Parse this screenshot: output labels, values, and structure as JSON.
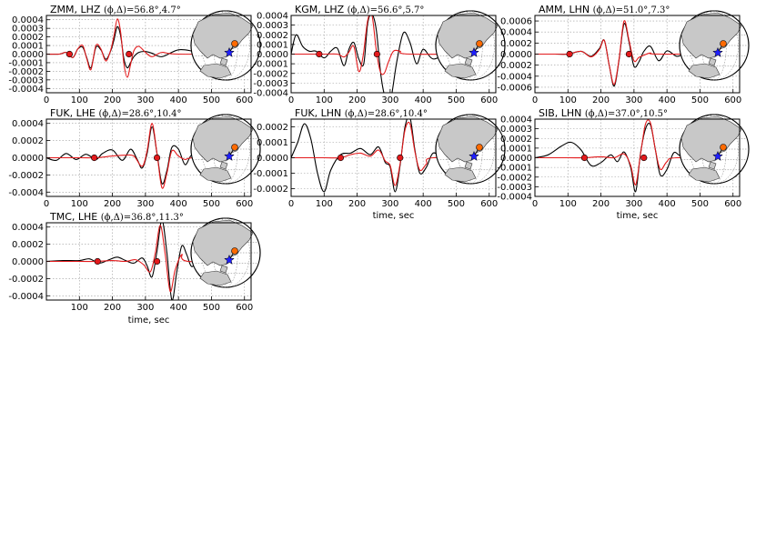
{
  "figure": {
    "time_axis_label": "time, sec",
    "colors": {
      "observed": "#000000",
      "synthetic": "#e31a1c",
      "marker": "#e31a1c",
      "event_star": "#1f1fff",
      "station": "#ff6a00",
      "land": "#c8c8c8"
    }
  },
  "chart_data": [
    {
      "type": "line",
      "station": "ZMM, LHZ",
      "params": "(ϕ,Δ)=56.8°,4.7°",
      "xlabel": "",
      "xlim": [
        0,
        620
      ],
      "ylim": [
        -0.00045,
        0.00045
      ],
      "xticks": [
        0,
        100,
        200,
        300,
        400,
        500,
        600
      ],
      "yticks": [
        "0.0004",
        "0.0003",
        "0.0002",
        "0.0001",
        "0.0000",
        "-0.0001",
        "-0.0002",
        "-0.0003",
        "-0.0004"
      ],
      "ytick_values": [
        0.0004,
        0.0003,
        0.0002,
        0.0001,
        0,
        -0.0001,
        -0.0002,
        -0.0003,
        -0.0004
      ],
      "window_markers": [
        70,
        250
      ],
      "series": [
        {
          "x": [
            0,
            40,
            60,
            80,
            95,
            110,
            122,
            135,
            150,
            165,
            180,
            195,
            205,
            215,
            225,
            235,
            245,
            255,
            265,
            280,
            300,
            320,
            350,
            400,
            450,
            500,
            620
          ],
          "y": [
            0,
            0,
            2e-05,
            -4e-05,
            6e-05,
            8e-05,
            -4e-05,
            -0.00016,
            8e-05,
            5e-05,
            -6e-05,
            4e-05,
            0.00017,
            0.00032,
            0.00021,
            -6e-05,
            -0.00016,
            -0.0001,
            -3e-05,
            2e-05,
            3e-05,
            1e-05,
            -3e-05,
            5e-05,
            3e-05,
            0,
            0
          ]
        },
        {
          "x": [
            0,
            40,
            60,
            80,
            95,
            110,
            122,
            135,
            150,
            165,
            180,
            195,
            205,
            215,
            225,
            235,
            245,
            255,
            265,
            280,
            300,
            320,
            350,
            400,
            620
          ],
          "y": [
            0,
            0,
            2e-05,
            -4e-05,
            6e-05,
            0.0001,
            -5e-05,
            -0.00018,
            0.0001,
            6e-05,
            -8e-05,
            5e-05,
            0.00022,
            0.00041,
            0.00025,
            -0.00012,
            -0.00027,
            -0.00012,
            4e-05,
            9e-05,
            2e-05,
            -3e-05,
            2e-05,
            0,
            0
          ]
        }
      ]
    },
    {
      "type": "line",
      "station": "KGM, LHZ",
      "params": "(ϕ,Δ)=56.6°,5.7°",
      "xlabel": "",
      "xlim": [
        0,
        620
      ],
      "ylim": [
        -0.0004,
        0.0004
      ],
      "xticks": [
        0,
        100,
        200,
        300,
        400,
        500,
        600
      ],
      "yticks": [
        "0.0004",
        "0.0003",
        "0.0002",
        "0.0001",
        "0.0000",
        "-0.0001",
        "-0.0002",
        "-0.0003",
        "-0.0004"
      ],
      "ytick_values": [
        0.0004,
        0.0003,
        0.0002,
        0.0001,
        0,
        -0.0001,
        -0.0002,
        -0.0003,
        -0.0004
      ],
      "window_markers": [
        85,
        260
      ],
      "series": [
        {
          "x": [
            0,
            15,
            35,
            55,
            75,
            100,
            120,
            140,
            160,
            175,
            190,
            205,
            220,
            232,
            245,
            258,
            272,
            285,
            300,
            320,
            340,
            360,
            380,
            400,
            430,
            480,
            620
          ],
          "y": [
            0,
            0.0002,
            8e-05,
            3e-05,
            3e-05,
            -4e-05,
            3e-05,
            6e-05,
            -0.00012,
            5e-05,
            0.00012,
            -5e-05,
            -0.0001,
            0.00032,
            0.00041,
            0.00025,
            -0.00022,
            -0.00045,
            -0.0005,
            -8e-05,
            0.00022,
            0.00012,
            -0.0001,
            5e-05,
            -5e-05,
            0,
            0
          ]
        },
        {
          "x": [
            0,
            50,
            100,
            140,
            160,
            175,
            190,
            205,
            218,
            232,
            245,
            258,
            270,
            282,
            295,
            310,
            330,
            360,
            620
          ],
          "y": [
            0,
            0,
            0,
            0,
            -3e-05,
            2e-05,
            8e-05,
            -0.00018,
            -2e-05,
            0.00035,
            0.0004,
            4e-05,
            -0.00018,
            -0.0002,
            -8e-05,
            3e-05,
            3e-05,
            0,
            0
          ]
        }
      ]
    },
    {
      "type": "line",
      "station": "AMM, LHN",
      "params": "(ϕ,Δ)=51.0°,7.3°",
      "xlabel": "",
      "xlim": [
        0,
        620
      ],
      "ylim": [
        -0.0007,
        0.0007
      ],
      "xticks": [
        0,
        100,
        200,
        300,
        400,
        500,
        600
      ],
      "yticks": [
        "0.0006",
        "0.0004",
        "0.0002",
        "0.0000",
        "-0.0002",
        "-0.0004",
        "-0.0006"
      ],
      "ytick_values": [
        0.0006,
        0.0004,
        0.0002,
        0,
        -0.0002,
        -0.0004,
        -0.0006
      ],
      "window_markers": [
        105,
        285
      ],
      "series": [
        {
          "x": [
            0,
            60,
            100,
            140,
            170,
            195,
            210,
            225,
            240,
            255,
            270,
            285,
            300,
            315,
            330,
            350,
            375,
            400,
            430,
            460,
            500,
            620
          ],
          "y": [
            0,
            0,
            0,
            5e-05,
            -4e-05,
            0.0001,
            0.00025,
            -0.0002,
            -0.00058,
            -0.0001,
            0.00055,
            0.00022,
            -0.00022,
            -0.00014,
            5e-05,
            0.00014,
            -0.00012,
            6e-05,
            -4e-05,
            2e-05,
            0,
            0
          ]
        },
        {
          "x": [
            0,
            60,
            100,
            140,
            170,
            195,
            210,
            225,
            240,
            255,
            270,
            285,
            300,
            315,
            330,
            350,
            375,
            620
          ],
          "y": [
            0,
            0,
            0,
            5e-05,
            -5e-05,
            8e-05,
            0.00025,
            -0.0002,
            -0.00055,
            -8e-05,
            0.0006,
            0.00025,
            -0.00012,
            -6e-05,
            -2e-05,
            2e-05,
            0,
            0
          ]
        }
      ]
    },
    {
      "type": "line",
      "station": "FUK, LHE",
      "params": "(ϕ,Δ)=28.6°,10.4°",
      "xlabel": "",
      "xlim": [
        0,
        620
      ],
      "ylim": [
        -0.00045,
        0.00045
      ],
      "xticks": [
        0,
        100,
        200,
        300,
        400,
        500,
        600
      ],
      "yticks": [
        "0.0004",
        "0.0002",
        "0.0000",
        "-0.0002",
        "-0.0004"
      ],
      "ytick_values": [
        0.0004,
        0.0002,
        0,
        -0.0002,
        -0.0004
      ],
      "window_markers": [
        145,
        335
      ],
      "series": [
        {
          "x": [
            0,
            30,
            60,
            90,
            120,
            150,
            170,
            200,
            230,
            255,
            275,
            290,
            305,
            320,
            335,
            350,
            365,
            380,
            400,
            420,
            440,
            470,
            620
          ],
          "y": [
            0,
            -3e-05,
            5e-05,
            -2e-05,
            4e-05,
            -2e-05,
            5e-05,
            9e-05,
            -3e-05,
            0.0001,
            -2e-05,
            -0.00012,
            5e-05,
            0.00036,
            5e-05,
            -0.0003,
            -0.00015,
            0.00012,
            0.0001,
            -8e-05,
            3e-05,
            0,
            0
          ]
        },
        {
          "x": [
            0,
            100,
            150,
            200,
            240,
            265,
            290,
            305,
            320,
            335,
            350,
            365,
            380,
            400,
            420,
            450,
            620
          ],
          "y": [
            0,
            0,
            0,
            2e-05,
            3e-05,
            2e-05,
            -0.0001,
            8e-05,
            0.0004,
            5e-05,
            -0.00035,
            -0.00018,
            8e-05,
            2e-05,
            -2e-05,
            0,
            0
          ]
        }
      ]
    },
    {
      "type": "line",
      "station": "FUK, LHN",
      "params": "(ϕ,Δ)=28.6°,10.4°",
      "xlabel": "time, sec",
      "xlim": [
        0,
        620
      ],
      "ylim": [
        -0.00025,
        0.00025
      ],
      "xticks": [
        0,
        100,
        200,
        300,
        400,
        500,
        600
      ],
      "yticks": [
        "0.0002",
        "0.0001",
        "0.0000",
        "-0.0001",
        "-0.0002"
      ],
      "ytick_values": [
        0.0002,
        0.0001,
        0,
        -0.0001,
        -0.0002
      ],
      "window_markers": [
        150,
        330
      ],
      "series": [
        {
          "x": [
            0,
            20,
            40,
            60,
            80,
            100,
            120,
            150,
            180,
            210,
            240,
            265,
            285,
            300,
            315,
            330,
            345,
            360,
            375,
            390,
            410,
            430,
            460,
            500,
            620
          ],
          "y": [
            0,
            0.0001,
            0.00022,
            0.00012,
            -0.0001,
            -0.00022,
            -8e-05,
            2e-05,
            3e-05,
            6e-05,
            2e-05,
            7e-05,
            -3e-05,
            -6e-05,
            -0.00022,
            -5e-05,
            0.0002,
            0.00026,
            5e-05,
            -0.0001,
            -6e-05,
            3e-05,
            0,
            0,
            0
          ]
        },
        {
          "x": [
            0,
            100,
            150,
            180,
            210,
            240,
            265,
            285,
            300,
            315,
            330,
            345,
            360,
            375,
            390,
            410,
            430,
            620
          ],
          "y": [
            0,
            0,
            0,
            2e-05,
            3e-05,
            1e-05,
            5e-05,
            -2e-05,
            -5e-05,
            -0.00018,
            -4e-05,
            0.00018,
            0.00022,
            4e-05,
            -8e-05,
            -4e-05,
            0,
            0
          ]
        }
      ]
    },
    {
      "type": "line",
      "station": "SIB, LHN",
      "params": "(ϕ,Δ)=37.0°,10.5°",
      "xlabel": "time, sec",
      "xlim": [
        0,
        620
      ],
      "ylim": [
        -0.0004,
        0.0004
      ],
      "xticks": [
        0,
        100,
        200,
        300,
        400,
        500,
        600
      ],
      "yticks": [
        "0.0004",
        "0.0003",
        "0.0002",
        "0.0001",
        "0.0000",
        "-0.0001",
        "-0.0002",
        "-0.0003",
        "-0.0004"
      ],
      "ytick_values": [
        0.0004,
        0.0003,
        0.0002,
        0.0001,
        0,
        -0.0001,
        -0.0002,
        -0.0003,
        -0.0004
      ],
      "window_markers": [
        150,
        330
      ],
      "series": [
        {
          "x": [
            0,
            40,
            80,
            110,
            140,
            170,
            200,
            230,
            250,
            270,
            290,
            305,
            320,
            335,
            350,
            365,
            380,
            400,
            420,
            440,
            470,
            500,
            620
          ],
          "y": [
            0,
            3e-05,
            0.00012,
            0.00016,
            8e-05,
            -8e-05,
            -5e-05,
            3e-05,
            -4e-05,
            6e-05,
            -0.0001,
            -0.00035,
            5e-05,
            0.0003,
            0.00034,
            8e-05,
            -0.00018,
            -0.00012,
            5e-05,
            2e-05,
            -1e-05,
            0,
            0
          ]
        },
        {
          "x": [
            0,
            100,
            150,
            200,
            240,
            270,
            290,
            305,
            320,
            335,
            350,
            365,
            380,
            400,
            430,
            620
          ],
          "y": [
            0,
            0,
            0,
            1e-05,
            0,
            4e-05,
            -8e-05,
            -0.00028,
            4e-05,
            0.00035,
            0.00036,
            8e-05,
            -0.00012,
            -4e-05,
            0,
            0
          ]
        }
      ]
    },
    {
      "type": "line",
      "station": "TMC, LHE",
      "params": "(ϕ,Δ)=36.8°,11.3°",
      "xlabel": "time, sec",
      "xlim": [
        0,
        620
      ],
      "ylim": [
        -0.00045,
        0.00045
      ],
      "xticks": [
        100,
        200,
        300,
        400,
        500,
        600
      ],
      "yticks": [
        "0.0004",
        "0.0002",
        "0.0000",
        "-0.0002",
        "-0.0004"
      ],
      "ytick_values": [
        0.0004,
        0.0002,
        0,
        -0.0002,
        -0.0004
      ],
      "window_markers": [
        155,
        335
      ],
      "series": [
        {
          "x": [
            0,
            50,
            100,
            130,
            160,
            190,
            215,
            240,
            265,
            290,
            305,
            320,
            335,
            350,
            365,
            380,
            395,
            410,
            425,
            440,
            460,
            480,
            620
          ],
          "y": [
            0,
            1e-05,
            1e-05,
            3e-05,
            -2e-05,
            2e-05,
            5e-05,
            1e-05,
            -2e-05,
            4e-05,
            -5e-05,
            -0.00018,
            0.00012,
            0.00048,
            0.0001,
            -0.00045,
            -0.00012,
            0.00018,
            8e-05,
            -6e-05,
            2e-05,
            0,
            0
          ]
        },
        {
          "x": [
            0,
            100,
            150,
            200,
            240,
            270,
            295,
            315,
            330,
            345,
            360,
            375,
            390,
            410,
            430,
            620
          ],
          "y": [
            0,
            0,
            0,
            1e-05,
            0,
            2e-05,
            -4e-05,
            -0.00012,
            0.0001,
            0.00042,
            8e-05,
            -0.00035,
            -0.0001,
            8e-05,
            0,
            0
          ]
        }
      ]
    }
  ]
}
